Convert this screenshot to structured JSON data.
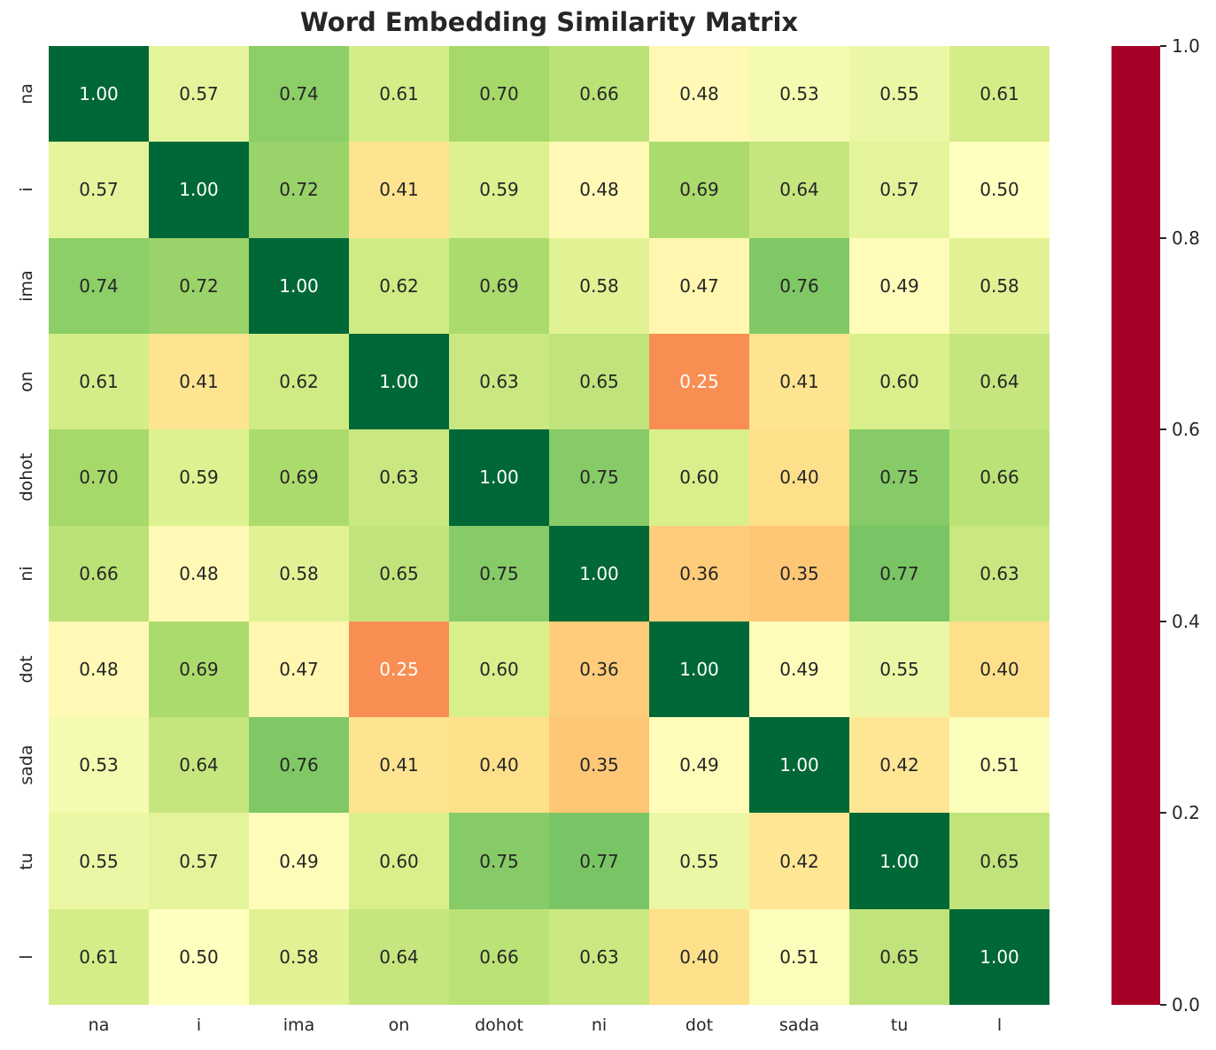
{
  "title": "Word Embedding Similarity Matrix",
  "text_color": "#262626",
  "chart_data": {
    "type": "heatmap",
    "title": "Word Embedding Similarity Matrix",
    "xlabel": "",
    "ylabel": "",
    "categories": [
      "na",
      "i",
      "ima",
      "on",
      "dohot",
      "ni",
      "dot",
      "sada",
      "tu",
      "l"
    ],
    "matrix": [
      [
        1.0,
        0.57,
        0.74,
        0.61,
        0.7,
        0.66,
        0.48,
        0.53,
        0.55,
        0.61
      ],
      [
        0.57,
        1.0,
        0.72,
        0.41,
        0.59,
        0.48,
        0.69,
        0.64,
        0.57,
        0.5
      ],
      [
        0.74,
        0.72,
        1.0,
        0.62,
        0.69,
        0.58,
        0.47,
        0.76,
        0.49,
        0.58
      ],
      [
        0.61,
        0.41,
        0.62,
        1.0,
        0.63,
        0.65,
        0.25,
        0.41,
        0.6,
        0.64
      ],
      [
        0.7,
        0.59,
        0.69,
        0.63,
        1.0,
        0.75,
        0.6,
        0.4,
        0.75,
        0.66
      ],
      [
        0.66,
        0.48,
        0.58,
        0.65,
        0.75,
        1.0,
        0.36,
        0.35,
        0.77,
        0.63
      ],
      [
        0.48,
        0.69,
        0.47,
        0.25,
        0.6,
        0.36,
        1.0,
        0.49,
        0.55,
        0.4
      ],
      [
        0.53,
        0.64,
        0.76,
        0.41,
        0.4,
        0.35,
        0.49,
        1.0,
        0.42,
        0.51
      ],
      [
        0.55,
        0.57,
        0.49,
        0.6,
        0.75,
        0.77,
        0.55,
        0.42,
        1.0,
        0.65
      ],
      [
        0.61,
        0.5,
        0.58,
        0.64,
        0.66,
        0.63,
        0.4,
        0.51,
        0.65,
        1.0
      ]
    ],
    "value_decimals": 2,
    "colormap_name": "RdYlGn",
    "colormap_anchors": [
      "#a50026",
      "#d73027",
      "#f46d43",
      "#fdae61",
      "#fee08b",
      "#ffffbf",
      "#d9ef8b",
      "#a6d96a",
      "#66bd63",
      "#1a9850",
      "#006837"
    ],
    "annotation_dark_color": "#262626",
    "annotation_light_color": "#ffffff",
    "grid": false,
    "legend_position": "none",
    "colorbar": {
      "min": 0.0,
      "max": 1.0,
      "position": "right",
      "ticks": [
        {
          "label": "1.0",
          "value": 1.0
        },
        {
          "label": "0.8",
          "value": 0.8
        },
        {
          "label": "0.6",
          "value": 0.6
        },
        {
          "label": "0.4",
          "value": 0.4
        },
        {
          "label": "0.2",
          "value": 0.2
        },
        {
          "label": "0.0",
          "value": 0.0
        }
      ]
    }
  }
}
